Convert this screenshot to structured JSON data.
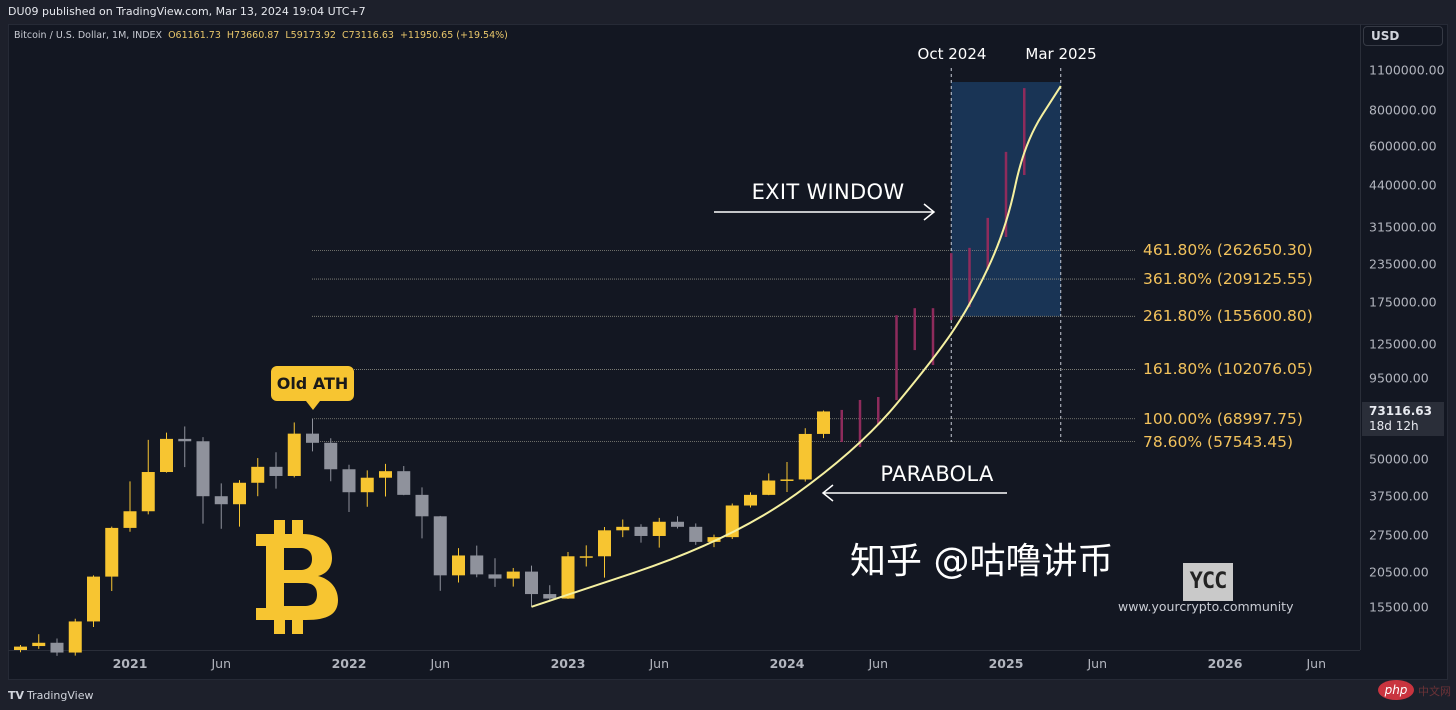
{
  "header": {
    "published": "DU09 published on TradingView.com, Mar 13, 2024 19:04 UTC+7",
    "symbol": "Bitcoin / U.S. Dollar, 1M, INDEX",
    "open": "O61161.73",
    "high": "H73660.87",
    "low": "L59173.92",
    "close": "C73116.63",
    "change": "+11950.65 (+19.54%)"
  },
  "price_axis": {
    "currency": "USD",
    "last_price": "73116.63",
    "countdown": "18d 12h"
  },
  "annotations": {
    "old_ath": "Old ATH",
    "exit_window": "EXIT WINDOW",
    "parabola": "PARABOLA",
    "window_start": "Oct 2024",
    "window_end": "Mar 2025"
  },
  "branding": {
    "logo_symbol": "₿",
    "ycc_logo": "YCC",
    "ycc_url": "www.yourcrypto.community",
    "watermark": "知乎 @咕噜讲币",
    "php_logo": "php",
    "php_text": "中文网",
    "footer": "TradingView",
    "footer_mark": "TV"
  },
  "colors": {
    "up": "#f7c531",
    "down": "#8f929c",
    "projection": "#8e2b5c",
    "fib": "#f2c25c",
    "parabola": "#f5f0a0",
    "window": "#1b3a5e"
  },
  "chart_data": {
    "type": "candlestick",
    "y_scale": "log",
    "ylim": [
      11000,
      1100000
    ],
    "y_ticks": [
      1100000,
      800000,
      600000,
      440000,
      315000,
      235000,
      175000,
      125000,
      95000,
      50000,
      37500,
      27500,
      20500,
      15500
    ],
    "y_tick_labels": [
      "1100000.00",
      "800000.00",
      "600000.00",
      "440000.00",
      "315000.00",
      "235000.00",
      "175000.00",
      "125000.00",
      "95000.00",
      "50000.00",
      "37500.00",
      "27500.00",
      "20500.00",
      "15500.00"
    ],
    "x_ticks": [
      {
        "label": "2021",
        "date": "2021-01"
      },
      {
        "label": "Jun",
        "date": "2021-06"
      },
      {
        "label": "2022",
        "date": "2022-01"
      },
      {
        "label": "Jun",
        "date": "2022-06"
      },
      {
        "label": "2023",
        "date": "2023-01"
      },
      {
        "label": "Jun",
        "date": "2023-06"
      },
      {
        "label": "2024",
        "date": "2024-01"
      },
      {
        "label": "Jun",
        "date": "2024-06"
      },
      {
        "label": "2025",
        "date": "2025-01"
      },
      {
        "label": "Jun",
        "date": "2025-06"
      },
      {
        "label": "2026",
        "date": "2026-01"
      },
      {
        "label": "Jun",
        "date": "2026-06"
      }
    ],
    "candles": [
      [
        "2020-07",
        11000,
        11450,
        10800,
        11300
      ],
      [
        "2020-08",
        11350,
        12470,
        11100,
        11650
      ],
      [
        "2020-09",
        11650,
        12050,
        10500,
        10780
      ],
      [
        "2020-10",
        10780,
        14100,
        10520,
        13800
      ],
      [
        "2020-11",
        13800,
        19900,
        13200,
        19700
      ],
      [
        "2020-12",
        19700,
        29300,
        17570,
        29000
      ],
      [
        "2021-01",
        29000,
        41950,
        28130,
        33100
      ],
      [
        "2021-02",
        33100,
        58350,
        32300,
        45200
      ],
      [
        "2021-03",
        45200,
        61800,
        45000,
        58800
      ],
      [
        "2021-04",
        58800,
        64900,
        47000,
        57700
      ],
      [
        "2021-05",
        57700,
        59600,
        30000,
        37300
      ],
      [
        "2021-06",
        37300,
        41300,
        28800,
        35000
      ],
      [
        "2021-07",
        35000,
        42400,
        29300,
        41500
      ],
      [
        "2021-08",
        41500,
        50500,
        37300,
        47100
      ],
      [
        "2021-09",
        47100,
        52900,
        39600,
        43800
      ],
      [
        "2021-10",
        43800,
        67000,
        43300,
        61300
      ],
      [
        "2021-11",
        61300,
        69000,
        53250,
        57000
      ],
      [
        "2021-12",
        57000,
        59100,
        42000,
        46200
      ],
      [
        "2022-01",
        46200,
        47900,
        32900,
        38500
      ],
      [
        "2022-02",
        38500,
        45800,
        34300,
        43200
      ],
      [
        "2022-03",
        43200,
        48200,
        37200,
        45500
      ],
      [
        "2022-04",
        45500,
        47400,
        37600,
        37700
      ],
      [
        "2022-05",
        37700,
        40000,
        26700,
        31800
      ],
      [
        "2022-06",
        31800,
        31900,
        17600,
        19900
      ],
      [
        "2022-07",
        19900,
        24700,
        18800,
        23300
      ],
      [
        "2022-08",
        23300,
        25200,
        19600,
        20050
      ],
      [
        "2022-09",
        20050,
        22800,
        18150,
        19400
      ],
      [
        "2022-10",
        19400,
        21100,
        18200,
        20500
      ],
      [
        "2022-11",
        20500,
        21500,
        15500,
        17150
      ],
      [
        "2022-12",
        17150,
        18400,
        16300,
        16550
      ],
      [
        "2023-01",
        16550,
        23950,
        16500,
        23150
      ],
      [
        "2023-02",
        23150,
        25250,
        21350,
        23150
      ],
      [
        "2023-03",
        23150,
        29200,
        19550,
        28450
      ],
      [
        "2023-04",
        28450,
        31000,
        26950,
        29250
      ],
      [
        "2023-05",
        29250,
        29850,
        25800,
        27200
      ],
      [
        "2023-06",
        27200,
        31400,
        24800,
        30450
      ],
      [
        "2023-07",
        30450,
        31800,
        28850,
        29250
      ],
      [
        "2023-08",
        29250,
        30050,
        25350,
        25950
      ],
      [
        "2023-09",
        25950,
        27500,
        24900,
        26950
      ],
      [
        "2023-10",
        26950,
        35200,
        26550,
        34650
      ],
      [
        "2023-11",
        34650,
        38450,
        34100,
        37700
      ],
      [
        "2023-12",
        37700,
        44700,
        37600,
        42250
      ],
      [
        "2024-01",
        42250,
        48950,
        38550,
        42600
      ],
      [
        "2024-02",
        42600,
        64000,
        41900,
        61150
      ],
      [
        "2024-03",
        61161.73,
        73660.87,
        59173.92,
        73116.63
      ]
    ],
    "projection_ranges": [
      [
        "2024-04",
        57360,
        74000
      ],
      [
        "2024-05",
        55100,
        80100
      ],
      [
        "2024-06",
        65600,
        82000
      ],
      [
        "2024-07",
        80000,
        157000
      ],
      [
        "2024-08",
        119000,
        166000
      ],
      [
        "2024-09",
        105700,
        166000
      ],
      [
        "2024-10",
        151000,
        257000
      ],
      [
        "2024-11",
        167500,
        268000
      ],
      [
        "2024-12",
        225000,
        340000
      ],
      [
        "2025-01",
        292000,
        574000
      ],
      [
        "2025-02",
        478000,
        953000
      ]
    ],
    "fib_levels": [
      {
        "label": "461.80% (262650.30)",
        "price": 262650.3
      },
      {
        "label": "361.80% (209125.55)",
        "price": 209125.55
      },
      {
        "label": "261.80% (155600.80)",
        "price": 155600.8
      },
      {
        "label": "161.80% (102076.05)",
        "price": 102076.05
      },
      {
        "label": "100.00% (68997.75)",
        "price": 68997.75
      },
      {
        "label": "78.60% (57543.45)",
        "price": 57543.45
      }
    ],
    "exit_window": {
      "from": "2024-10",
      "to": "2025-03",
      "price_low": 155600.8,
      "price_high": 1000000
    },
    "parabola": [
      [
        "2022-11",
        15500
      ],
      [
        "2023-10",
        26340
      ],
      [
        "2024-05",
        54700
      ],
      [
        "2024-09",
        110000
      ],
      [
        "2024-11",
        167500
      ],
      [
        "2025-01",
        309000
      ],
      [
        "2025-02",
        617000
      ],
      [
        "2025-03",
        968000
      ]
    ]
  }
}
